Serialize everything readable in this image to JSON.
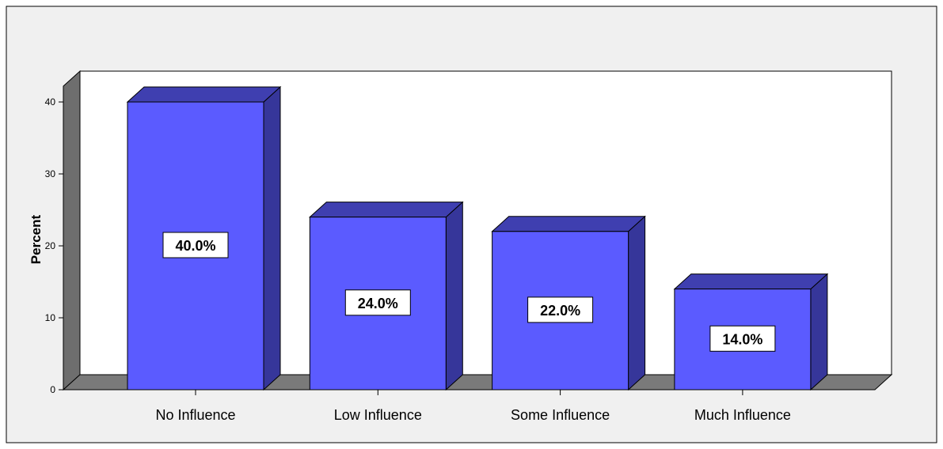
{
  "chart_data": {
    "type": "bar",
    "categories": [
      "No Influence",
      "Low Influence",
      "Some Influence",
      "Much Influence"
    ],
    "values": [
      40.0,
      24.0,
      22.0,
      14.0
    ],
    "data_labels": [
      "40.0%",
      "24.0%",
      "22.0%",
      "14.0%"
    ],
    "title": "",
    "xlabel": "",
    "ylabel": "Percent",
    "ylim": [
      0,
      40
    ],
    "yticks": [
      "0",
      "10",
      "20",
      "30",
      "40"
    ],
    "grid": false,
    "legend": "none",
    "three_d": true
  },
  "colors": {
    "frame_background": "#f0f0f0",
    "plot_background": "#ffffff",
    "wall_side": "#6e6e6e",
    "floor": "#7a7a7a",
    "bar_front": "#5b5bff",
    "bar_top": "#3f3fb0",
    "bar_side": "#36369a"
  }
}
